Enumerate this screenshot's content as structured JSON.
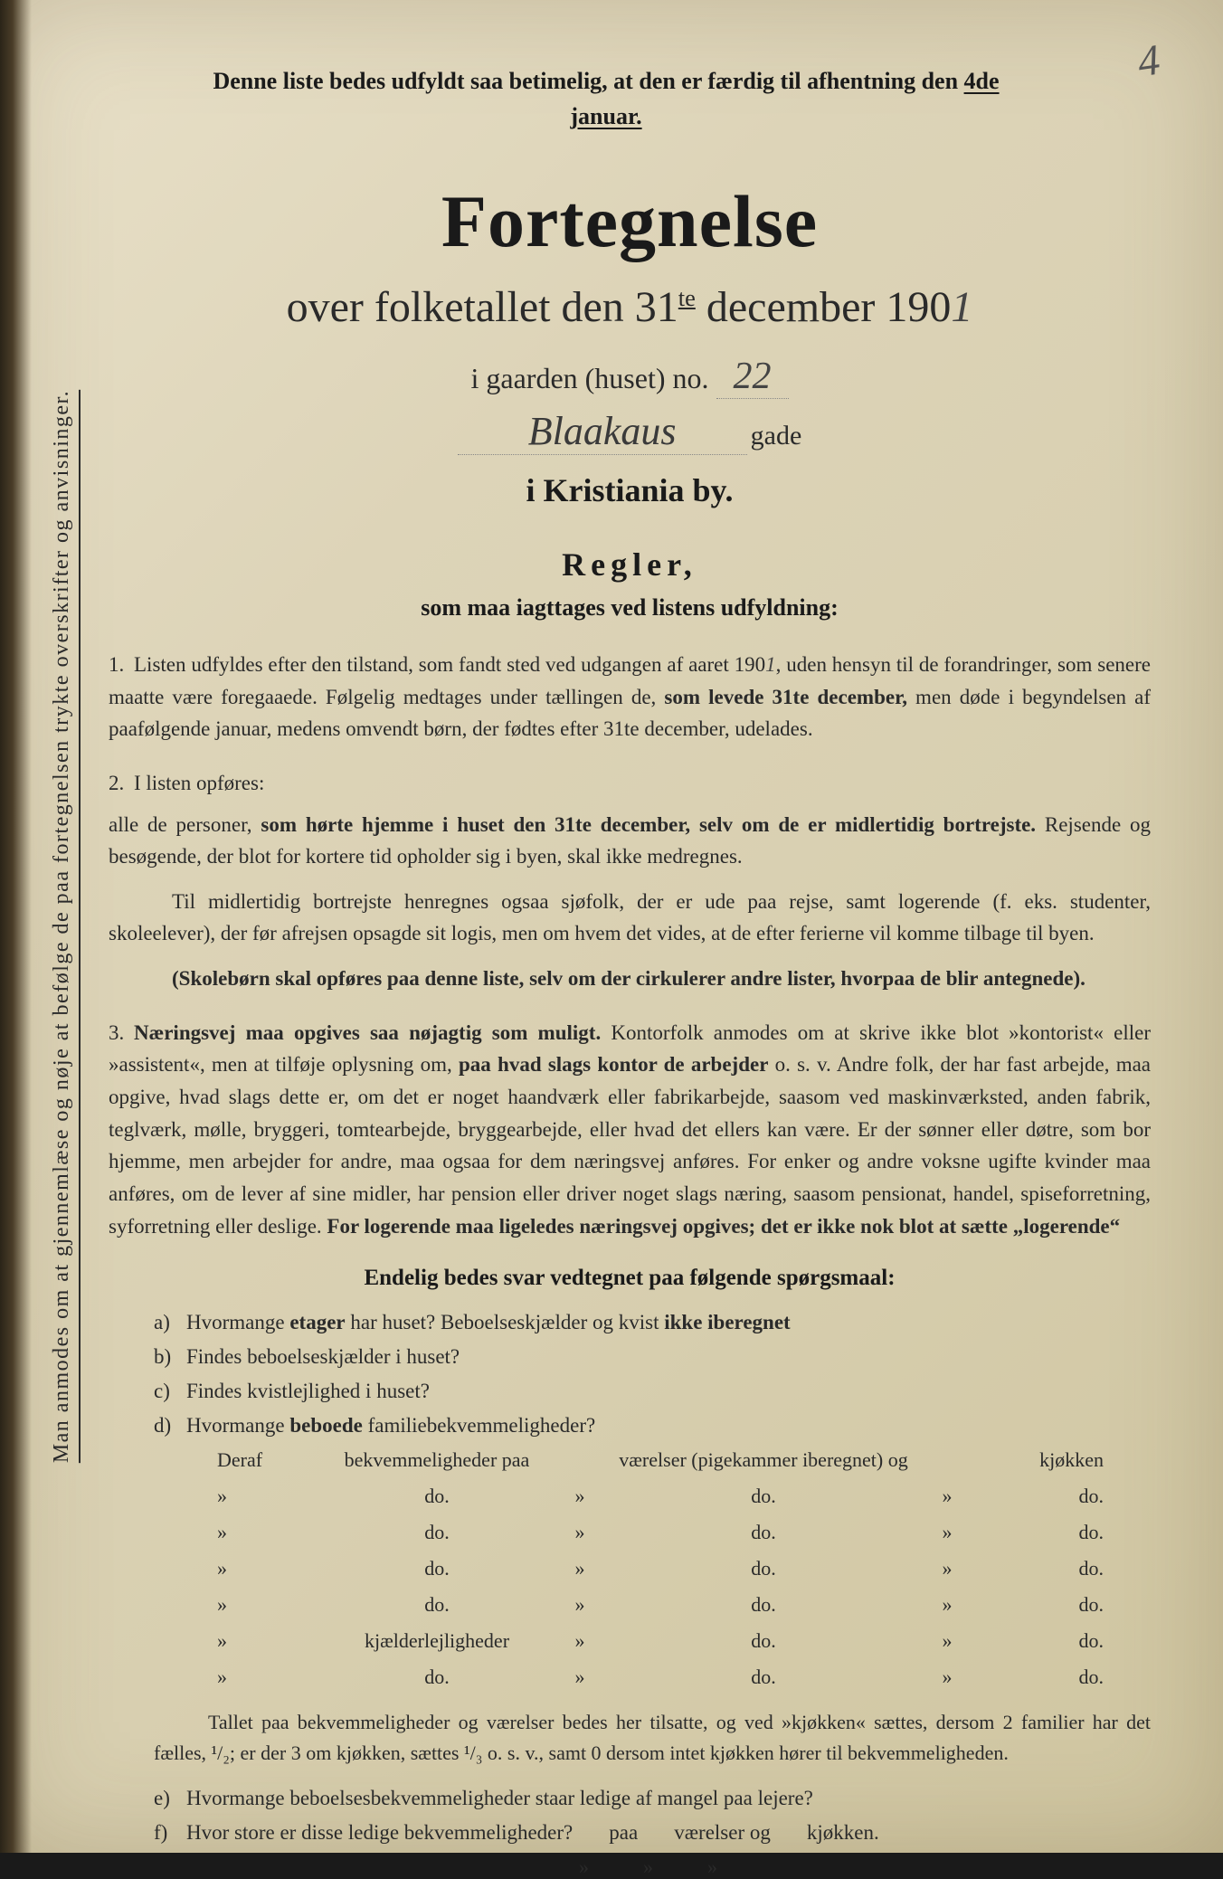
{
  "colors": {
    "paper_bg_start": "#e8e0c8",
    "paper_bg_end": "#cfc5a0",
    "text_dark": "#1a1a1a",
    "text_body": "#2a2a2a",
    "handwriting": "#444444",
    "dotted_line": "#888888"
  },
  "typography": {
    "title_fontsize": 82,
    "subtitle_fontsize": 48,
    "body_fontsize": 23,
    "header_note_fontsize": 26,
    "font_family": "Georgia, Times New Roman, serif",
    "handwriting_family": "cursive"
  },
  "page_number": "4",
  "vertical_note": "Man anmodes om at gjennemlæse og nøje at befølge de paa fortegnelsen trykte overskrifter og anvisninger.",
  "header_note_pre": "Denne liste bedes udfyldt saa betimelig, at den er færdig til afhentning den ",
  "header_note_date": "4de januar.",
  "main_title": "Fortegnelse",
  "subtitle_pre": "over folketallet den 31",
  "subtitle_sup": "te",
  "subtitle_post": " december 190",
  "year_hand": "1",
  "address_label": "i gaarden (huset) no.",
  "house_no": "22",
  "street_name": "Blaakaus",
  "gade_label": "gade",
  "city_line": "i Kristiania by.",
  "rules_title": "Regler,",
  "rules_subtitle": "som maa iagttages ved listens udfyldning:",
  "rule1_num": "1.",
  "rule1_text_a": "Listen udfyldes efter den tilstand, som fandt sted ved udgangen af aaret 190",
  "rule1_hand": "1",
  "rule1_text_b": ", uden hensyn til de forandringer, som senere maatte være foregaaede. Følgelig medtages under tællingen de, ",
  "rule1_bold": "som levede 31te december,",
  "rule1_text_c": " men døde i begyndelsen af paafølgende januar, medens omvendt børn, der fødtes efter 31te december, udelades.",
  "rule2_num": "2.",
  "rule2_lead": "I listen opføres:",
  "rule2_text_a": "alle de personer, ",
  "rule2_bold": "som hørte hjemme i huset den 31te december, selv om de er midlertidig bortrejste.",
  "rule2_text_b": " Rejsende og besøgende, der blot for kortere tid opholder sig i byen, skal ikke medregnes.",
  "rule2_para2": "Til midlertidig bortrejste henregnes ogsaa sjøfolk, der er ude paa rejse, samt logerende (f. eks. studenter, skoleelever), der før afrejsen opsagde sit logis, men om hvem det vides, at de efter ferierne vil komme tilbage til byen.",
  "rule2_para3": "(Skolebørn skal opføres paa denne liste, selv om der cirkulerer andre lister, hvorpaa de blir antegnede).",
  "rule3_num": "3.",
  "rule3_bold1": "Næringsvej maa opgives saa nøjagtig som muligt.",
  "rule3_text_a": " Kontorfolk anmodes om at skrive ikke blot »kontorist« eller »assistent«, men at tilføje oplysning om, ",
  "rule3_bold2": "paa hvad slags kontor de arbejder",
  "rule3_text_b": " o. s. v.  Andre folk, der har fast arbejde, maa opgive, hvad slags dette er, om det er noget haandværk eller fabrikarbejde, saasom ved maskinværksted, anden fabrik, teglværk, mølle, bryggeri, tomtearbejde, bryggearbejde, eller hvad det ellers kan være.  Er der sønner eller døtre, som bor hjemme, men arbejder for andre, maa ogsaa for dem næringsvej anføres.  For enker og andre voksne ugifte kvinder maa anføres, om de lever af sine midler, har pension eller driver noget slags næring, saasom pensionat, handel, spiseforretning, syforretning eller deslige.  ",
  "rule3_bold3": "For logerende maa ligeledes næringsvej opgives; det er ikke nok blot at sætte „logerende“",
  "questions_title": "Endelig bedes svar vedtegnet paa følgende spørgsmaal:",
  "qa_letter": "a)",
  "qa_text_a": "Hvormange ",
  "qa_bold1": "etager",
  "qa_text_b": " har huset?  Beboelseskjælder og kvist ",
  "qa_bold2": "ikke iberegnet",
  "qb_letter": "b)",
  "qb_text": "Findes beboelseskjælder i huset?",
  "qc_letter": "c)",
  "qc_text": "Findes kvistlejlighed i huset?",
  "qd_letter": "d)",
  "qd_text_a": "Hvormange ",
  "qd_bold": "beboede",
  "qd_text_b": " familiebekvemmeligheder?",
  "table_header": {
    "c1": "Deraf",
    "c2": "bekvemmeligheder paa",
    "c4": "værelser (pigekammer iberegnet) og",
    "c6": "kjøkken"
  },
  "table_rows": [
    {
      "c1": "»",
      "c2": "do.",
      "c3": "»",
      "c4": "do.",
      "c5": "»",
      "c6": "do."
    },
    {
      "c1": "»",
      "c2": "do.",
      "c3": "»",
      "c4": "do.",
      "c5": "»",
      "c6": "do."
    },
    {
      "c1": "»",
      "c2": "do.",
      "c3": "»",
      "c4": "do.",
      "c5": "»",
      "c6": "do."
    },
    {
      "c1": "»",
      "c2": "do.",
      "c3": "»",
      "c4": "do.",
      "c5": "»",
      "c6": "do."
    },
    {
      "c1": "»",
      "c2": "kjælderlejligheder",
      "c3": "»",
      "c4": "do.",
      "c5": "»",
      "c6": "do."
    },
    {
      "c1": "»",
      "c2": "do.",
      "c3": "»",
      "c4": "do.",
      "c5": "»",
      "c6": "do."
    }
  ],
  "footer_note": "Tallet paa bekvemmeligheder og værelser bedes her tilsatte, og ved »kjøkken« sættes, dersom 2 familier har det fælles, ¹/₂; er der 3 om kjøkken, sættes ¹/₃ o. s. v., samt 0 dersom intet kjøkken hører til bekvemmeligheden.",
  "qe_letter": "e)",
  "qe_text": "Hvormange beboelsesbekvemmeligheder staar ledige af mangel paa lejere?",
  "qf_letter": "f)",
  "qf_text": "Hvor store er disse ledige bekvemmeligheder?",
  "qf_tail_paa": "paa",
  "qf_tail_vaer": "værelser og",
  "qf_tail_kjok": "kjøkken.",
  "trailing_marks": [
    "»",
    "»",
    "»"
  ]
}
